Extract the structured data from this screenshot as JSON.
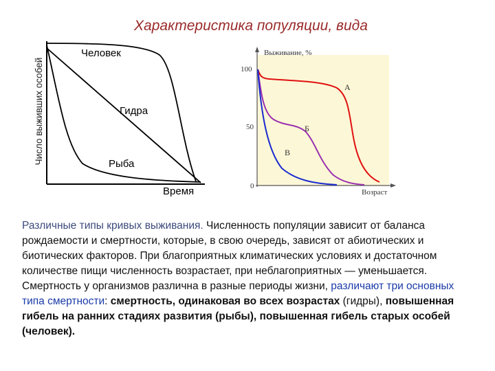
{
  "title": "Характеристика популяции, вида",
  "left_diagram": {
    "y_axis_label": "Число выживших особей",
    "x_axis_label": "Время",
    "curves": [
      "Человек",
      "Гидра",
      "Рыба"
    ]
  },
  "right_diagram": {
    "y_axis_label": "Выживание, %",
    "x_axis_label": "Возраст",
    "yticks": [
      "100",
      "50",
      "0"
    ],
    "curves": [
      "А",
      "Б",
      "В"
    ]
  },
  "paragraph": [
    "Различные типы кривых выживания.",
    "Численность популяции зависит от баланса рождаемости и смертности, которые, в свою очередь, зависят от абиотических и биотических факторов. При благоприятных климатических условиях и достаточном количестве пищи численность возрастает, при неблагоприятных — уменьшается. Смертность у организмов различна в разные периоды жизни,",
    "различают три основных типа смертности",
    ":",
    "смертность, одинаковая во всех возрастах",
    "(гидры),",
    "повышенная гибель на ранних стадиях развития (рыбы), повышенная гибель старых особей (человек)."
  ]
}
